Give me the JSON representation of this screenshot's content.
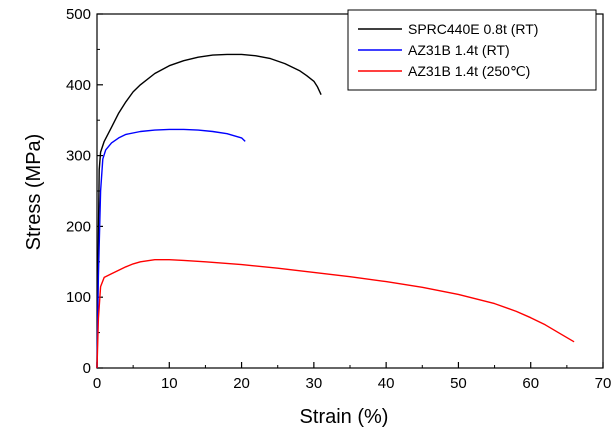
{
  "chart_data": {
    "type": "line",
    "title": "",
    "xlabel": "Strain (%)",
    "ylabel": "Stress (MPa)",
    "xlim": [
      0,
      70
    ],
    "ylim": [
      0,
      500
    ],
    "xticks": [
      0,
      10,
      20,
      30,
      40,
      50,
      60,
      70
    ],
    "yticks": [
      0,
      100,
      200,
      300,
      400,
      500
    ],
    "grid": false,
    "legend_position": "top-right",
    "series": [
      {
        "name": "SPRC440E 0.8t (RT)",
        "color": "#000000",
        "x": [
          0,
          0.15,
          0.3,
          0.5,
          1,
          2,
          3,
          4,
          5,
          6,
          8,
          10,
          12,
          14,
          16,
          18,
          20,
          22,
          24,
          26,
          28,
          29,
          30,
          30.5,
          31
        ],
        "y": [
          0,
          150,
          280,
          305,
          320,
          340,
          360,
          376,
          390,
          400,
          416,
          427,
          434,
          439,
          442,
          443,
          443,
          441,
          437,
          430,
          420,
          413,
          405,
          397,
          386
        ]
      },
      {
        "name": "AZ31B 1.4t (RT)",
        "color": "#0000ff",
        "x": [
          0,
          0.2,
          0.5,
          0.8,
          1.2,
          2,
          3,
          4,
          6,
          8,
          10,
          12,
          14,
          16,
          18,
          19,
          20,
          20.5
        ],
        "y": [
          0,
          130,
          250,
          295,
          308,
          318,
          325,
          330,
          334,
          336,
          337,
          337,
          336,
          334,
          331,
          328,
          325,
          320
        ]
      },
      {
        "name": "AZ31B 1.4t (250℃)",
        "color": "#ff0000",
        "x": [
          0,
          0.2,
          0.5,
          1,
          2,
          3,
          4,
          5,
          6,
          8,
          10,
          12,
          15,
          20,
          25,
          30,
          35,
          40,
          45,
          50,
          55,
          58,
          60,
          62,
          64,
          66
        ],
        "y": [
          0,
          70,
          115,
          128,
          133,
          138,
          143,
          147,
          150,
          153,
          153,
          152,
          150,
          146,
          141,
          135,
          129,
          122,
          114,
          104,
          91,
          80,
          71,
          61,
          49,
          37
        ]
      }
    ]
  }
}
